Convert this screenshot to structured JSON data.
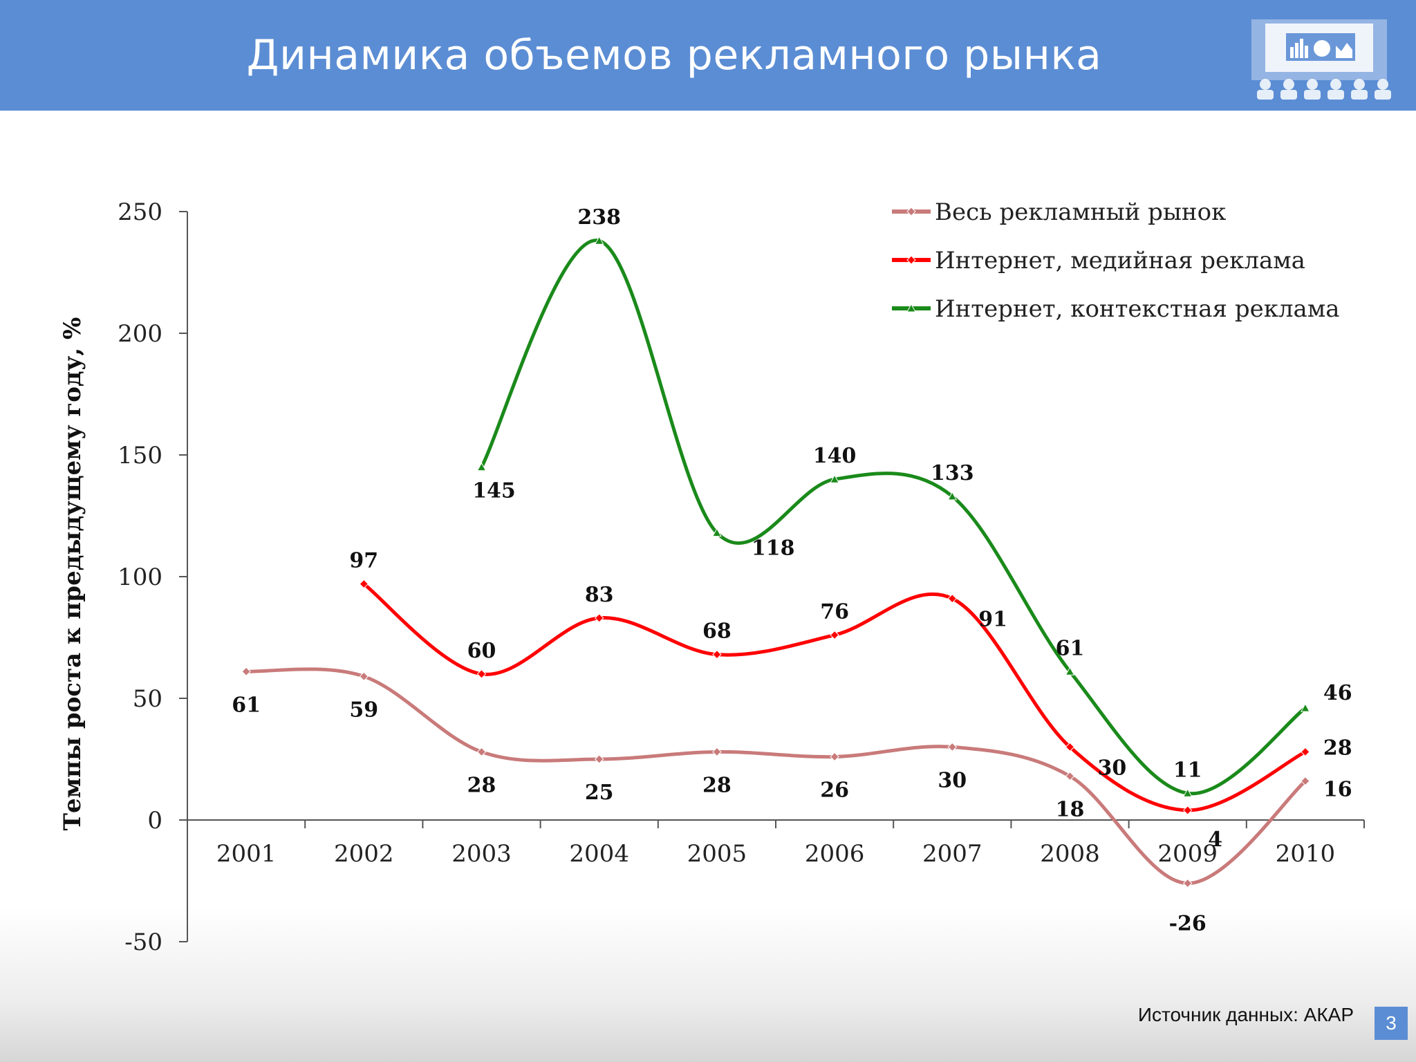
{
  "slide": {
    "title": "Динамика объемов рекламного рынка",
    "source": "Источник данных: АКАР",
    "page_number": "3",
    "logo_icon": "presentation-audience-icon"
  },
  "colors": {
    "header": "#5b8dd4",
    "all_market": "#c97a7a",
    "internet_display": "#ff0000",
    "internet_context": "#1a8a1a"
  },
  "chart_data": {
    "type": "line",
    "smooth": true,
    "ylabel": "Темпы роста к предыдущему году, %",
    "xlabel": "",
    "ylim": [
      -50,
      250
    ],
    "yticks": [
      -50,
      0,
      50,
      100,
      150,
      200,
      250
    ],
    "categories": [
      "2001",
      "2002",
      "2003",
      "2004",
      "2005",
      "2006",
      "2007",
      "2008",
      "2009",
      "2010"
    ],
    "legend_position": "top-right",
    "grid": false,
    "series": [
      {
        "name": "Весь рекламный рынок",
        "color": "#c97a7a",
        "marker": "diamond",
        "values": [
          61,
          59,
          28,
          25,
          28,
          26,
          30,
          18,
          -26,
          16
        ]
      },
      {
        "name": "Интернет, медийная реклама",
        "color": "#ff0000",
        "marker": "diamond",
        "values": [
          null,
          97,
          60,
          83,
          68,
          76,
          91,
          30,
          4,
          28
        ]
      },
      {
        "name": "Интернет, контекстная реклама",
        "color": "#1a8a1a",
        "marker": "triangle",
        "values": [
          null,
          null,
          145,
          238,
          118,
          140,
          133,
          61,
          11,
          46
        ]
      }
    ]
  }
}
